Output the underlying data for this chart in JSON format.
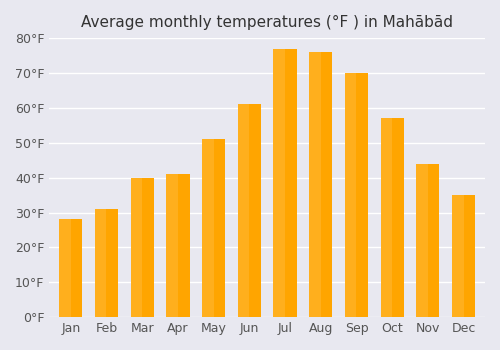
{
  "title": "Average monthly temperatures (°F ) in Mahābād",
  "months": [
    "Jan",
    "Feb",
    "Mar",
    "Apr",
    "May",
    "Jun",
    "Jul",
    "Aug",
    "Sep",
    "Oct",
    "Nov",
    "Dec"
  ],
  "values": [
    28,
    31,
    40,
    41,
    51,
    61,
    77,
    76,
    70,
    57,
    44,
    35
  ],
  "bar_color_top": "#FFA500",
  "bar_color_bottom": "#FFB732",
  "ylim": [
    0,
    80
  ],
  "yticks": [
    0,
    10,
    20,
    30,
    40,
    50,
    60,
    70,
    80
  ],
  "ytick_labels": [
    "0°F",
    "10°F",
    "20°F",
    "30°F",
    "40°F",
    "50°F",
    "60°F",
    "70°F",
    "80°F"
  ],
  "background_color": "#e8e8f0",
  "title_fontsize": 11,
  "tick_fontsize": 9,
  "bar_edge_color": "none"
}
